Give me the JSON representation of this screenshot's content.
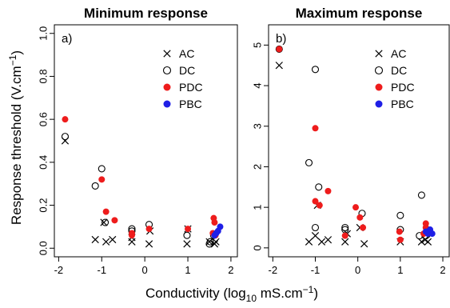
{
  "ylabel": "Response threshold (V.cm",
  "ylabel_sup": "−1",
  "ylabel_tail": ")",
  "xlabel_pre": "Conductivity (log",
  "xlabel_sub": "10",
  "xlabel_mid": " mS.cm",
  "xlabel_sup": "−1",
  "xlabel_tail": ")",
  "series_style": {
    "AC": {
      "marker": "cross",
      "color": "#000000"
    },
    "DC": {
      "marker": "open-circle",
      "color": "#000000"
    },
    "PDC": {
      "marker": "filled-circle",
      "color": "#ee1c1c"
    },
    "PBC": {
      "marker": "filled-circle",
      "color": "#1f1fe6"
    }
  },
  "chart_data": [
    {
      "type": "scatter",
      "title": "Minimum response",
      "panel_label": "a)",
      "xlim": [
        -2,
        2
      ],
      "ylim": [
        0,
        1
      ],
      "xticks": [
        "-2",
        "-1",
        "0",
        "1",
        "2"
      ],
      "xtick_values": [
        -2,
        -1,
        0,
        1,
        2
      ],
      "yticks": [
        "0.0",
        "0.2",
        "0.4",
        "0.6",
        "0.8",
        "1.0"
      ],
      "ytick_values": [
        0,
        0.2,
        0.4,
        0.6,
        0.8,
        1.0
      ],
      "legend_position": "top-right",
      "series": [
        {
          "name": "AC",
          "points": [
            [
              -1.85,
              0.5
            ],
            [
              -1.15,
              0.04
            ],
            [
              -0.95,
              0.12
            ],
            [
              -0.9,
              0.03
            ],
            [
              -0.75,
              0.04
            ],
            [
              -0.3,
              0.03
            ],
            [
              -0.3,
              0.05
            ],
            [
              0.1,
              0.02
            ],
            [
              0.12,
              0.08
            ],
            [
              0.98,
              0.02
            ],
            [
              1.0,
              0.09
            ],
            [
              1.5,
              0.03
            ],
            [
              1.62,
              0.02
            ],
            [
              1.65,
              0.03
            ]
          ]
        },
        {
          "name": "DC",
          "points": [
            [
              -1.85,
              0.52
            ],
            [
              -1.15,
              0.29
            ],
            [
              -1.0,
              0.37
            ],
            [
              -0.92,
              0.12
            ],
            [
              -0.3,
              0.08
            ],
            [
              -0.3,
              0.09
            ],
            [
              0.1,
              0.11
            ],
            [
              0.98,
              0.06
            ],
            [
              1.5,
              0.02
            ],
            [
              1.52,
              0.03
            ],
            [
              1.6,
              0.06
            ]
          ]
        },
        {
          "name": "PDC",
          "points": [
            [
              -1.85,
              0.6
            ],
            [
              -1.0,
              0.32
            ],
            [
              -0.9,
              0.17
            ],
            [
              -0.7,
              0.13
            ],
            [
              -0.3,
              0.06
            ],
            [
              -0.3,
              0.07
            ],
            [
              0.1,
              0.09
            ],
            [
              1.0,
              0.09
            ],
            [
              1.6,
              0.14
            ],
            [
              1.62,
              0.12
            ],
            [
              1.58,
              0.07
            ],
            [
              1.64,
              0.06
            ]
          ]
        },
        {
          "name": "PBC",
          "points": [
            [
              1.62,
              0.06
            ],
            [
              1.66,
              0.07
            ],
            [
              1.7,
              0.08
            ],
            [
              1.75,
              0.1
            ]
          ]
        }
      ]
    },
    {
      "type": "scatter",
      "title": "Maximum response",
      "panel_label": "b)",
      "xlim": [
        -2,
        2
      ],
      "ylim": [
        0,
        5.5
      ],
      "xticks": [
        "-2",
        "-1",
        "0",
        "1",
        "2"
      ],
      "xtick_values": [
        -2,
        -1,
        0,
        1,
        2
      ],
      "yticks": [
        "0",
        "1",
        "2",
        "3",
        "4",
        "5"
      ],
      "ytick_values": [
        0,
        1,
        2,
        3,
        4,
        5
      ],
      "legend_position": "top-right",
      "series": [
        {
          "name": "AC",
          "points": [
            [
              -1.85,
              4.5
            ],
            [
              -1.15,
              0.15
            ],
            [
              -1.0,
              0.3
            ],
            [
              -0.95,
              1.05
            ],
            [
              -0.85,
              0.15
            ],
            [
              -0.7,
              0.2
            ],
            [
              -0.3,
              0.15
            ],
            [
              -0.25,
              0.35
            ],
            [
              0.05,
              0.5
            ],
            [
              0.15,
              0.1
            ],
            [
              1.0,
              0.15
            ],
            [
              1.5,
              0.15
            ],
            [
              1.58,
              0.2
            ],
            [
              1.62,
              0.35
            ],
            [
              1.65,
              0.15
            ]
          ]
        },
        {
          "name": "DC",
          "points": [
            [
              -1.85,
              4.9
            ],
            [
              -1.15,
              2.1
            ],
            [
              -1.0,
              4.4
            ],
            [
              -1.0,
              0.5
            ],
            [
              -0.92,
              1.5
            ],
            [
              -0.3,
              0.5
            ],
            [
              -0.3,
              0.45
            ],
            [
              0.1,
              0.85
            ],
            [
              1.0,
              0.8
            ],
            [
              1.0,
              0.45
            ],
            [
              1.45,
              0.3
            ],
            [
              1.5,
              1.3
            ],
            [
              1.6,
              0.3
            ]
          ]
        },
        {
          "name": "PDC",
          "points": [
            [
              -1.85,
              4.9
            ],
            [
              -1.0,
              2.95
            ],
            [
              -1.0,
              1.15
            ],
            [
              -0.9,
              1.05
            ],
            [
              -0.7,
              1.4
            ],
            [
              -0.3,
              0.3
            ],
            [
              -0.05,
              1.0
            ],
            [
              0.05,
              0.75
            ],
            [
              0.12,
              0.5
            ],
            [
              0.98,
              0.4
            ],
            [
              1.0,
              0.2
            ],
            [
              1.6,
              0.6
            ],
            [
              1.6,
              0.5
            ],
            [
              1.55,
              0.35
            ]
          ]
        },
        {
          "name": "PBC",
          "points": [
            [
              1.6,
              0.4
            ],
            [
              1.65,
              0.35
            ],
            [
              1.7,
              0.45
            ],
            [
              1.75,
              0.35
            ]
          ]
        }
      ]
    }
  ]
}
